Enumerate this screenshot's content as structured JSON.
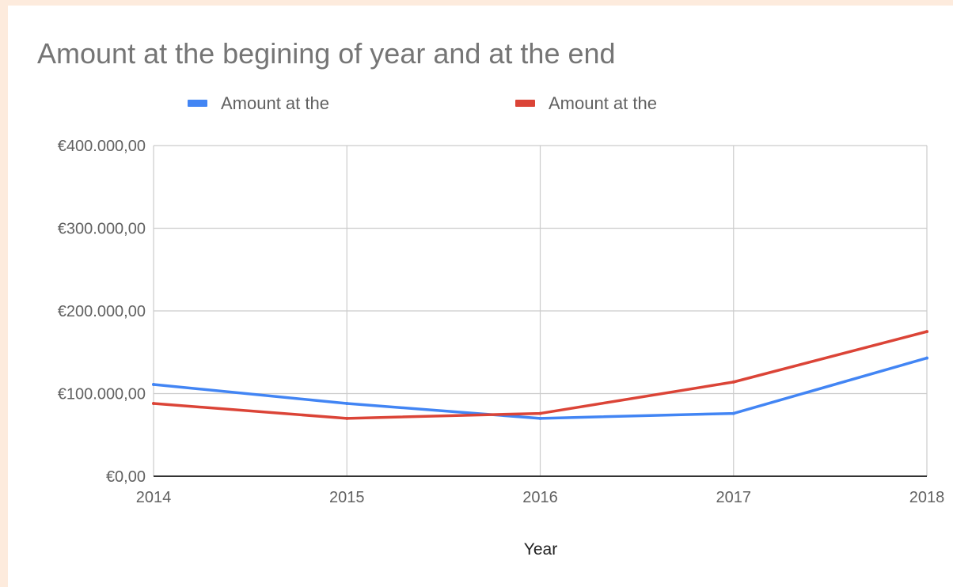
{
  "chart_data": {
    "type": "line",
    "title": "Amount at the begining of year and at the end",
    "xlabel": "Year",
    "ylabel": "",
    "x": [
      "2014",
      "2015",
      "2016",
      "2017",
      "2018"
    ],
    "ylim": [
      0,
      400000
    ],
    "y_ticks": [
      {
        "value": 0,
        "label": "€0,00"
      },
      {
        "value": 100000,
        "label": "€100.000,00"
      },
      {
        "value": 200000,
        "label": "€200.000,00"
      },
      {
        "value": 300000,
        "label": "€300.000,00"
      },
      {
        "value": 400000,
        "label": "€400.000,00"
      }
    ],
    "grid": true,
    "legend_position": "top",
    "series": [
      {
        "name": "Amount at the",
        "color": "#4285f4",
        "values": [
          111000,
          88000,
          70000,
          76000,
          143000
        ]
      },
      {
        "name": "Amount at the",
        "color": "#db4437",
        "values": [
          88000,
          70000,
          76000,
          114000,
          175000
        ]
      }
    ]
  }
}
